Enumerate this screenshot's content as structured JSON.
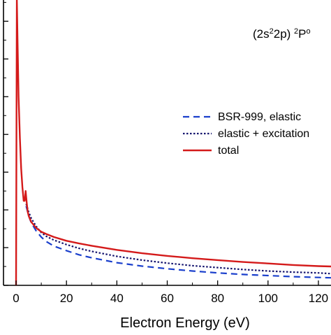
{
  "chart_data": {
    "type": "line",
    "title": "",
    "xlabel": "Electron Energy (eV)",
    "ylabel": "",
    "annotation": {
      "state": "(2s",
      "sup1": "2",
      "mid": "2p) ",
      "sup2": "2",
      "term": "P",
      "sup3": "o"
    },
    "xlim": [
      -5,
      125
    ],
    "ylim": [
      0,
      3.8
    ],
    "x_ticks": [
      0,
      20,
      40,
      60,
      80,
      100,
      120
    ],
    "x_tick_labels": [
      "0",
      "20",
      "40",
      "60",
      "80",
      "100",
      "120"
    ],
    "y_ticks": [
      0,
      0.5,
      1.0,
      1.5,
      2.0,
      2.5,
      3.0,
      3.5
    ],
    "grid": false,
    "legend_position": "middle-right",
    "series": [
      {
        "name": "BSR-999, elastic",
        "color": "#1a3fcc",
        "style": "dashed",
        "x": [
          4,
          5,
          6,
          8,
          10,
          12,
          15,
          20,
          25,
          30,
          40,
          50,
          60,
          70,
          80,
          90,
          100,
          110,
          120,
          125
        ],
        "y": [
          1.05,
          0.92,
          0.83,
          0.72,
          0.64,
          0.58,
          0.52,
          0.46,
          0.405,
          0.365,
          0.3,
          0.255,
          0.22,
          0.19,
          0.165,
          0.145,
          0.13,
          0.115,
          0.105,
          0.1
        ]
      },
      {
        "name": "elastic + excitation",
        "color": "#14146e",
        "style": "dotted",
        "x": [
          4,
          5,
          6,
          8,
          10,
          12,
          15,
          20,
          25,
          30,
          40,
          50,
          60,
          70,
          80,
          90,
          100,
          110,
          120,
          125
        ],
        "y": [
          1.08,
          0.97,
          0.89,
          0.78,
          0.7,
          0.65,
          0.6,
          0.54,
          0.49,
          0.45,
          0.385,
          0.335,
          0.295,
          0.26,
          0.235,
          0.21,
          0.19,
          0.175,
          0.165,
          0.155
        ]
      },
      {
        "name": "total",
        "color": "#d41a1a",
        "style": "solid",
        "x": [
          0,
          0.3,
          0.6,
          1,
          1.5,
          2,
          2.5,
          3,
          3.4,
          3.8,
          4.2,
          4.6,
          5,
          6,
          8,
          10,
          12,
          15,
          20,
          25,
          30,
          40,
          50,
          60,
          70,
          80,
          90,
          100,
          110,
          120,
          125
        ],
        "y": [
          0.0,
          3.8,
          3.2,
          2.5,
          1.95,
          1.55,
          1.3,
          1.12,
          1.12,
          1.25,
          1.1,
          0.98,
          0.92,
          0.84,
          0.76,
          0.71,
          0.68,
          0.64,
          0.59,
          0.555,
          0.525,
          0.47,
          0.425,
          0.39,
          0.36,
          0.335,
          0.31,
          0.29,
          0.27,
          0.255,
          0.25
        ]
      }
    ]
  }
}
